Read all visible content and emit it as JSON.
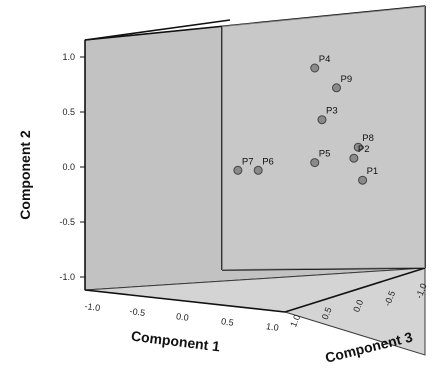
{
  "chart_data": {
    "type": "scatter",
    "title": "",
    "xlabel": "Component 1",
    "ylabel": "Component 2",
    "zlabel": "Component 3",
    "x_ticks": [
      "-1.0",
      "-0.5",
      "0.0",
      "0.5",
      "1.0"
    ],
    "y_ticks": [
      "-1.0",
      "-0.5",
      "0.0",
      "0.5",
      "1.0"
    ],
    "z_ticks": [
      "-1.0",
      "-0.5",
      "0.0",
      "0.5",
      "1.0"
    ],
    "points": [
      {
        "label": "P4",
        "x": 0.55,
        "y": 0.9
      },
      {
        "label": "P9",
        "x": 0.7,
        "y": 0.72
      },
      {
        "label": "P3",
        "x": 0.6,
        "y": 0.43
      },
      {
        "label": "P8",
        "x": 0.85,
        "y": 0.18
      },
      {
        "label": "P2",
        "x": 0.82,
        "y": 0.08
      },
      {
        "label": "P5",
        "x": 0.55,
        "y": 0.04
      },
      {
        "label": "P7",
        "x": 0.02,
        "y": -0.03
      },
      {
        "label": "P6",
        "x": 0.16,
        "y": -0.03
      },
      {
        "label": "P1",
        "x": 0.88,
        "y": -0.12
      }
    ],
    "colors": {
      "background_wall": "#c2c2c2",
      "floor": "#d4d4d4",
      "marker_fill": "#8a8a8a",
      "marker_stroke": "#444444"
    },
    "grid": false
  }
}
